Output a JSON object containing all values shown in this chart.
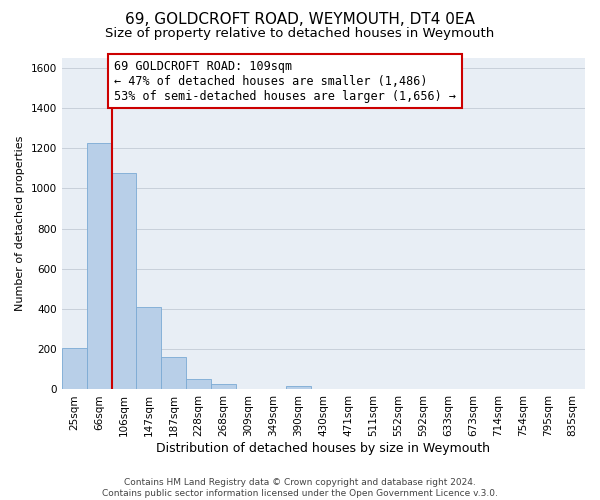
{
  "title": "69, GOLDCROFT ROAD, WEYMOUTH, DT4 0EA",
  "subtitle": "Size of property relative to detached houses in Weymouth",
  "xlabel": "Distribution of detached houses by size in Weymouth",
  "ylabel": "Number of detached properties",
  "bar_labels": [
    "25sqm",
    "66sqm",
    "106sqm",
    "147sqm",
    "187sqm",
    "228sqm",
    "268sqm",
    "309sqm",
    "349sqm",
    "390sqm",
    "430sqm",
    "471sqm",
    "511sqm",
    "552sqm",
    "592sqm",
    "633sqm",
    "673sqm",
    "714sqm",
    "754sqm",
    "795sqm",
    "835sqm"
  ],
  "bar_values": [
    205,
    1225,
    1075,
    410,
    160,
    52,
    25,
    0,
    0,
    15,
    0,
    0,
    0,
    0,
    0,
    0,
    0,
    0,
    0,
    0,
    0
  ],
  "bar_color": "#b8cfe8",
  "bar_edge_color": "#7baad4",
  "property_line_color": "#cc0000",
  "annotation_text": "69 GOLDCROFT ROAD: 109sqm\n← 47% of detached houses are smaller (1,486)\n53% of semi-detached houses are larger (1,656) →",
  "annotation_box_color": "#ffffff",
  "annotation_box_edge": "#cc0000",
  "ylim": [
    0,
    1650
  ],
  "yticks": [
    0,
    200,
    400,
    600,
    800,
    1000,
    1200,
    1400,
    1600
  ],
  "footer": "Contains HM Land Registry data © Crown copyright and database right 2024.\nContains public sector information licensed under the Open Government Licence v.3.0.",
  "bg_color": "#ffffff",
  "plot_bg_color": "#e8eef5",
  "grid_color": "#c8d0da",
  "title_fontsize": 11,
  "subtitle_fontsize": 9.5,
  "xlabel_fontsize": 9,
  "ylabel_fontsize": 8,
  "tick_fontsize": 7.5,
  "annotation_fontsize": 8.5,
  "footer_fontsize": 6.5
}
